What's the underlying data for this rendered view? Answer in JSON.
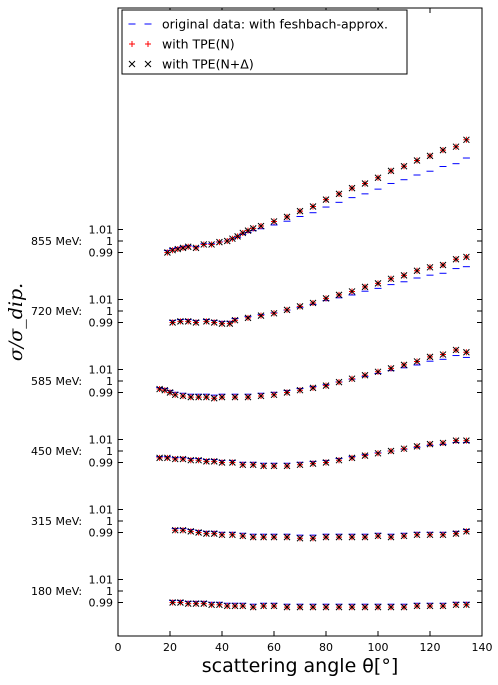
{
  "chart_data": {
    "type": "scatter",
    "xlabel": "scattering angle θ[°]",
    "ylabel": "σ/σ_dip.",
    "xlim": [
      0,
      140
    ],
    "x_ticks": [
      "0",
      "20",
      "40",
      "60",
      "80",
      "100",
      "120",
      "140"
    ],
    "legend_position": "top-left",
    "series": [
      {
        "name": "original data: with feshbach-approx.",
        "marker": "dash",
        "color": "#0000ff"
      },
      {
        "name": "with TPE(N)",
        "marker": "plus",
        "color": "#ff0000"
      },
      {
        "name": "with TPE(N+Δ)",
        "marker": "x",
        "color": "#000000"
      }
    ],
    "y_ticks": [
      "1.01",
      "1",
      "0.99"
    ],
    "panels": [
      {
        "energy": "855 MeV:",
        "points": [
          [
            19,
            0.99
          ],
          [
            21,
            0.992
          ],
          [
            23,
            0.993
          ],
          [
            25,
            0.994
          ],
          [
            27,
            0.995
          ],
          [
            30,
            0.994
          ],
          [
            33,
            0.997
          ],
          [
            36,
            0.997
          ],
          [
            39,
            0.999
          ],
          [
            42,
            1.0
          ],
          [
            44,
            1.002
          ],
          [
            46,
            1.004
          ],
          [
            48,
            1.007
          ],
          [
            50,
            1.009
          ],
          [
            52,
            1.011
          ],
          [
            55,
            1.013
          ],
          [
            60,
            1.017
          ],
          [
            65,
            1.021
          ],
          [
            70,
            1.026
          ],
          [
            75,
            1.03
          ],
          [
            80,
            1.036
          ],
          [
            85,
            1.041
          ],
          [
            90,
            1.046
          ],
          [
            95,
            1.05
          ],
          [
            100,
            1.055
          ],
          [
            105,
            1.061
          ],
          [
            110,
            1.065
          ],
          [
            115,
            1.07
          ],
          [
            120,
            1.074
          ],
          [
            125,
            1.079
          ],
          [
            130,
            1.082
          ],
          [
            134,
            1.088
          ]
        ]
      },
      {
        "energy": "720 MeV:",
        "points": [
          [
            21,
            0.99
          ],
          [
            24,
            0.991
          ],
          [
            27,
            0.991
          ],
          [
            30,
            0.99
          ],
          [
            34,
            0.991
          ],
          [
            37,
            0.99
          ],
          [
            40,
            0.989
          ],
          [
            43,
            0.989
          ],
          [
            45,
            0.992
          ],
          [
            50,
            0.994
          ],
          [
            55,
            0.996
          ],
          [
            60,
            0.998
          ],
          [
            65,
            1.001
          ],
          [
            70,
            1.004
          ],
          [
            75,
            1.007
          ],
          [
            80,
            1.011
          ],
          [
            85,
            1.014
          ],
          [
            90,
            1.017
          ],
          [
            95,
            1.021
          ],
          [
            100,
            1.024
          ],
          [
            105,
            1.028
          ],
          [
            110,
            1.031
          ],
          [
            115,
            1.035
          ],
          [
            120,
            1.038
          ],
          [
            125,
            1.04
          ],
          [
            130,
            1.045
          ],
          [
            134,
            1.047
          ]
        ]
      },
      {
        "energy": "585 MeV:",
        "points": [
          [
            16,
            0.993
          ],
          [
            18,
            0.992
          ],
          [
            20,
            0.99
          ],
          [
            22,
            0.988
          ],
          [
            25,
            0.987
          ],
          [
            28,
            0.986
          ],
          [
            31,
            0.986
          ],
          [
            34,
            0.986
          ],
          [
            37,
            0.985
          ],
          [
            40,
            0.986
          ],
          [
            45,
            0.986
          ],
          [
            50,
            0.986
          ],
          [
            55,
            0.987
          ],
          [
            60,
            0.988
          ],
          [
            65,
            0.99
          ],
          [
            70,
            0.992
          ],
          [
            75,
            0.994
          ],
          [
            80,
            0.996
          ],
          [
            85,
            0.999
          ],
          [
            90,
            1.002
          ],
          [
            95,
            1.005
          ],
          [
            100,
            1.008
          ],
          [
            105,
            1.011
          ],
          [
            110,
            1.014
          ],
          [
            115,
            1.017
          ],
          [
            120,
            1.021
          ],
          [
            125,
            1.023
          ],
          [
            130,
            1.027
          ],
          [
            134,
            1.025
          ]
        ]
      },
      {
        "energy": "450 MeV:",
        "points": [
          [
            16,
            0.994
          ],
          [
            19,
            0.994
          ],
          [
            22,
            0.993
          ],
          [
            25,
            0.993
          ],
          [
            28,
            0.992
          ],
          [
            31,
            0.992
          ],
          [
            34,
            0.991
          ],
          [
            37,
            0.991
          ],
          [
            40,
            0.99
          ],
          [
            44,
            0.99
          ],
          [
            48,
            0.988
          ],
          [
            52,
            0.988
          ],
          [
            56,
            0.987
          ],
          [
            60,
            0.987
          ],
          [
            65,
            0.987
          ],
          [
            70,
            0.988
          ],
          [
            75,
            0.989
          ],
          [
            80,
            0.99
          ],
          [
            85,
            0.992
          ],
          [
            90,
            0.994
          ],
          [
            95,
            0.996
          ],
          [
            100,
            0.998
          ],
          [
            105,
            1.0
          ],
          [
            110,
            1.002
          ],
          [
            115,
            1.004
          ],
          [
            120,
            1.006
          ],
          [
            125,
            1.007
          ],
          [
            130,
            1.009
          ],
          [
            134,
            1.009
          ]
        ]
      },
      {
        "energy": "315 MeV:",
        "points": [
          [
            22,
            0.992
          ],
          [
            25,
            0.992
          ],
          [
            28,
            0.991
          ],
          [
            31,
            0.99
          ],
          [
            34,
            0.989
          ],
          [
            37,
            0.989
          ],
          [
            40,
            0.988
          ],
          [
            44,
            0.988
          ],
          [
            48,
            0.987
          ],
          [
            52,
            0.986
          ],
          [
            56,
            0.986
          ],
          [
            60,
            0.986
          ],
          [
            65,
            0.986
          ],
          [
            70,
            0.985
          ],
          [
            75,
            0.985
          ],
          [
            80,
            0.986
          ],
          [
            85,
            0.986
          ],
          [
            90,
            0.986
          ],
          [
            95,
            0.986
          ],
          [
            100,
            0.987
          ],
          [
            105,
            0.986
          ],
          [
            110,
            0.987
          ],
          [
            115,
            0.988
          ],
          [
            120,
            0.988
          ],
          [
            125,
            0.988
          ],
          [
            130,
            0.989
          ],
          [
            134,
            0.991
          ]
        ]
      },
      {
        "energy": "180 MeV:",
        "points": [
          [
            21,
            0.99
          ],
          [
            24,
            0.99
          ],
          [
            27,
            0.989
          ],
          [
            30,
            0.989
          ],
          [
            33,
            0.989
          ],
          [
            36,
            0.988
          ],
          [
            39,
            0.988
          ],
          [
            42,
            0.987
          ],
          [
            45,
            0.987
          ],
          [
            48,
            0.987
          ],
          [
            52,
            0.986
          ],
          [
            56,
            0.987
          ],
          [
            60,
            0.987
          ],
          [
            65,
            0.986
          ],
          [
            70,
            0.986
          ],
          [
            75,
            0.986
          ],
          [
            80,
            0.986
          ],
          [
            85,
            0.986
          ],
          [
            90,
            0.986
          ],
          [
            95,
            0.986
          ],
          [
            100,
            0.986
          ],
          [
            105,
            0.986
          ],
          [
            110,
            0.986
          ],
          [
            115,
            0.987
          ],
          [
            120,
            0.987
          ],
          [
            125,
            0.987
          ],
          [
            130,
            0.988
          ],
          [
            134,
            0.988
          ]
        ]
      }
    ]
  }
}
